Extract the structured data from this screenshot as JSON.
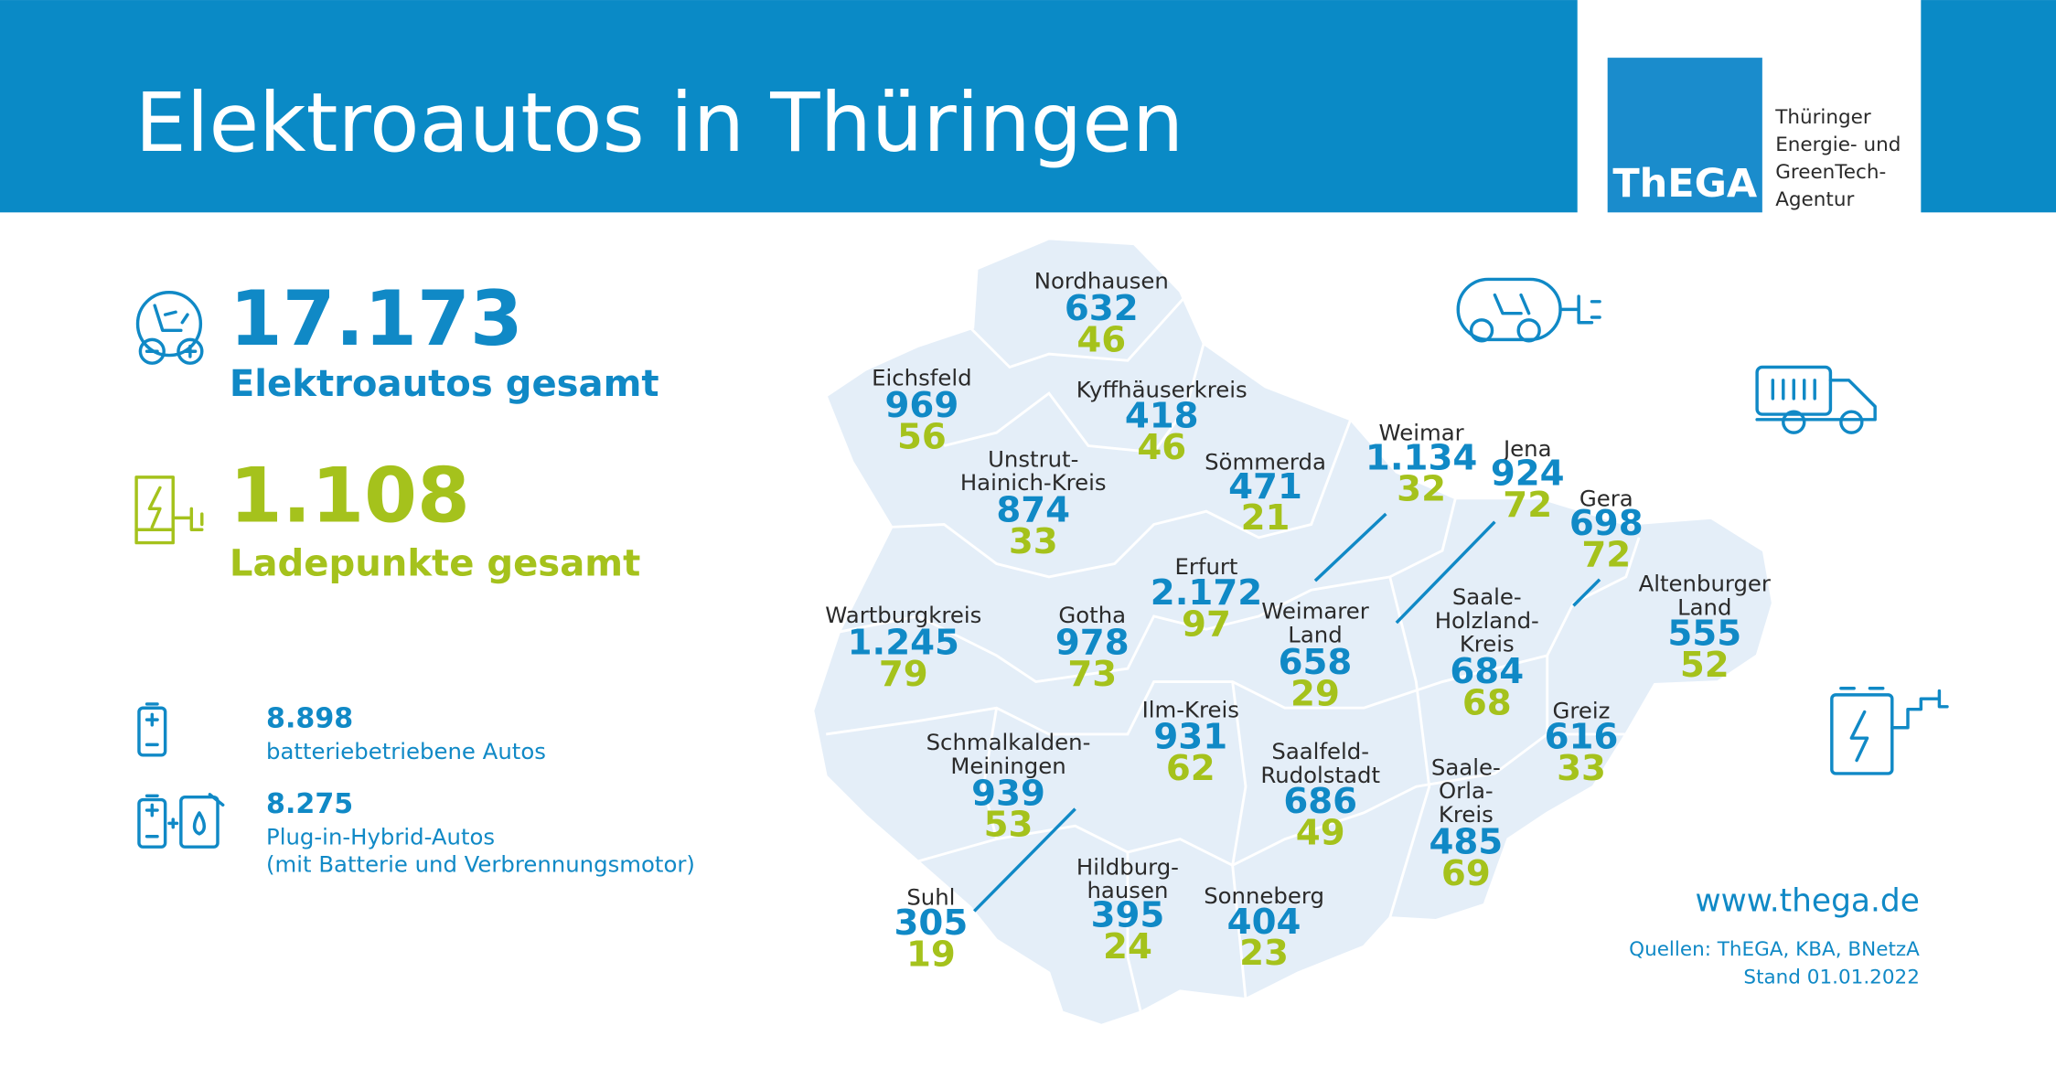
{
  "header": {
    "title": "Elektroautos in Thüringen",
    "logo_text": "ThEGA",
    "agency_lines": [
      "Thüringer",
      "Energie- und",
      "GreenTech-",
      "Agentur"
    ]
  },
  "totals": {
    "cars_value": "17.173",
    "cars_label": "Elektroautos gesamt",
    "charging_value": "1.108",
    "charging_label": "Ladepunkte gesamt"
  },
  "breakdown": [
    {
      "value": "8.898",
      "lines": [
        "batteriebetriebene Autos"
      ]
    },
    {
      "value": "8.275",
      "lines": [
        "Plug-in-Hybrid-Autos",
        "(mit Batterie und Verbrennungsmotor)"
      ]
    }
  ],
  "districts": [
    {
      "name_lines": [
        "Nordhausen"
      ],
      "cars": "632",
      "charging": "46"
    },
    {
      "name_lines": [
        "Eichsfeld"
      ],
      "cars": "969",
      "charging": "56"
    },
    {
      "name_lines": [
        "Kyffhäuserkreis"
      ],
      "cars": "418",
      "charging": "46"
    },
    {
      "name_lines": [
        "Unstrut-",
        "Hainich-Kreis"
      ],
      "cars": "874",
      "charging": "33"
    },
    {
      "name_lines": [
        "Sömmerda"
      ],
      "cars": "471",
      "charging": "21"
    },
    {
      "name_lines": [
        "Weimar"
      ],
      "cars": "1.134",
      "charging": "32"
    },
    {
      "name_lines": [
        "Jena"
      ],
      "cars": "924",
      "charging": "72"
    },
    {
      "name_lines": [
        "Gera"
      ],
      "cars": "698",
      "charging": "72"
    },
    {
      "name_lines": [
        "Erfurt"
      ],
      "cars": "2.172",
      "charging": "97"
    },
    {
      "name_lines": [
        "Weimarer",
        "Land"
      ],
      "cars": "658",
      "charging": "29"
    },
    {
      "name_lines": [
        "Saale-",
        "Holzland-",
        "Kreis"
      ],
      "cars": "684",
      "charging": "68"
    },
    {
      "name_lines": [
        "Altenburger",
        "Land"
      ],
      "cars": "555",
      "charging": "52"
    },
    {
      "name_lines": [
        "Wartburgkreis"
      ],
      "cars": "1.245",
      "charging": "79"
    },
    {
      "name_lines": [
        "Gotha"
      ],
      "cars": "978",
      "charging": "73"
    },
    {
      "name_lines": [
        "Ilm-Kreis"
      ],
      "cars": "931",
      "charging": "62"
    },
    {
      "name_lines": [
        "Greiz"
      ],
      "cars": "616",
      "charging": "33"
    },
    {
      "name_lines": [
        "Schmalkalden-",
        "Meiningen"
      ],
      "cars": "939",
      "charging": "53"
    },
    {
      "name_lines": [
        "Saalfeld-",
        "Rudolstadt"
      ],
      "cars": "686",
      "charging": "49"
    },
    {
      "name_lines": [
        "Saale-",
        "Orla-",
        "Kreis"
      ],
      "cars": "485",
      "charging": "69"
    },
    {
      "name_lines": [
        "Suhl"
      ],
      "cars": "305",
      "charging": "19"
    },
    {
      "name_lines": [
        "Hildburg-",
        "hausen"
      ],
      "cars": "395",
      "charging": "24"
    },
    {
      "name_lines": [
        "Sonneberg"
      ],
      "cars": "404",
      "charging": "23"
    }
  ],
  "footer": {
    "website": "www.thega.de",
    "sources": "Quellen: ThEGA, KBA, BNetzA",
    "date": "Stand 01.01.2022"
  }
}
